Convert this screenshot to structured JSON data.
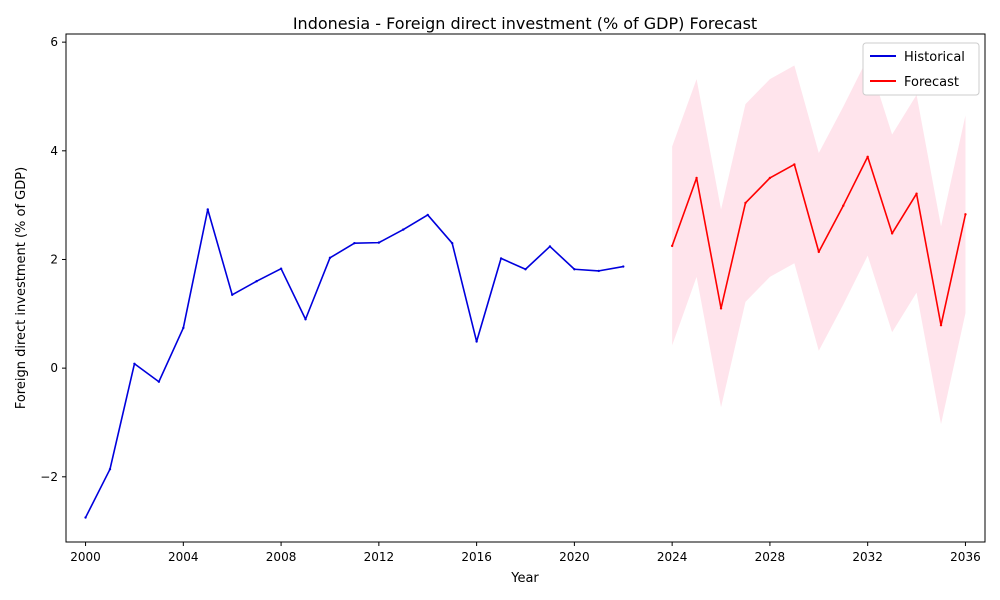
{
  "chart_data": {
    "type": "line",
    "title": "Indonesia - Foreign direct investment (% of GDP) Forecast",
    "xlabel": "Year",
    "ylabel": "Foreign direct investment (% of GDP)",
    "xlim": [
      1999.2,
      2036.8
    ],
    "ylim": [
      -3.2,
      6.15
    ],
    "x_ticks": [
      2000,
      2004,
      2008,
      2012,
      2016,
      2020,
      2024,
      2028,
      2032,
      2036
    ],
    "y_ticks": [
      -2,
      0,
      2,
      4,
      6
    ],
    "x_tick_labels": [
      "2000",
      "2004",
      "2008",
      "2012",
      "2016",
      "2020",
      "2024",
      "2028",
      "2032",
      "2036"
    ],
    "y_tick_labels": [
      "−2",
      "0",
      "2",
      "4",
      "6"
    ],
    "grid": false,
    "legend_position": "top-right",
    "series": [
      {
        "name": "Historical",
        "color": "#0000dd",
        "x": [
          2000,
          2001,
          2002,
          2003,
          2004,
          2005,
          2006,
          2007,
          2008,
          2009,
          2010,
          2011,
          2012,
          2013,
          2014,
          2015,
          2016,
          2017,
          2018,
          2019,
          2020,
          2021,
          2022
        ],
        "y": [
          -2.75,
          -1.86,
          0.08,
          -0.25,
          0.74,
          2.92,
          1.35,
          1.6,
          1.83,
          0.9,
          2.03,
          2.3,
          2.31,
          2.55,
          2.82,
          2.3,
          0.49,
          2.02,
          1.82,
          2.24,
          1.82,
          1.79,
          1.87
        ]
      },
      {
        "name": "Forecast",
        "color": "#ff0000",
        "x": [
          2024,
          2025,
          2026,
          2027,
          2028,
          2029,
          2030,
          2031,
          2032,
          2033,
          2034,
          2035,
          2036
        ],
        "y": [
          2.25,
          3.5,
          1.1,
          3.04,
          3.5,
          3.75,
          2.14,
          2.99,
          3.89,
          2.48,
          3.21,
          0.79,
          2.83
        ]
      }
    ],
    "confidence_band": {
      "color": "#ffe4ec",
      "x": [
        2024,
        2025,
        2026,
        2027,
        2028,
        2029,
        2030,
        2031,
        2032,
        2033,
        2034,
        2035,
        2036
      ],
      "lower": [
        0.42,
        1.68,
        -0.72,
        1.22,
        1.68,
        1.93,
        0.32,
        1.17,
        2.07,
        0.66,
        1.39,
        -1.03,
        1.01
      ],
      "upper": [
        4.08,
        5.32,
        2.92,
        4.86,
        5.32,
        5.57,
        3.96,
        4.81,
        5.71,
        4.3,
        5.03,
        2.61,
        4.65
      ]
    }
  }
}
